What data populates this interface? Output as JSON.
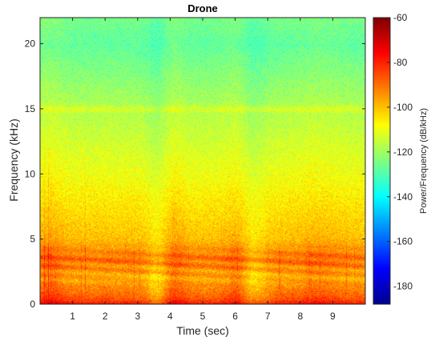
{
  "chart_data": {
    "type": "heatmap",
    "title": "Drone",
    "xlabel": "Time (sec)",
    "ylabel": "Frequency (kHz)",
    "xlim": [
      0,
      10
    ],
    "ylim": [
      0,
      22
    ],
    "x_ticks": [
      1,
      2,
      3,
      4,
      5,
      6,
      7,
      8,
      9
    ],
    "y_ticks": [
      0,
      5,
      10,
      15,
      20
    ],
    "colorbar": {
      "label": "Power/Frequency (dB/kHz)",
      "range": [
        -188,
        -60
      ],
      "ticks": [
        -60,
        -80,
        -100,
        -120,
        -140,
        -160,
        -180
      ],
      "colormap": "jet"
    },
    "description_profile": {
      "freq_khz": [
        0,
        0.5,
        2,
        3.5,
        5,
        7,
        10,
        15,
        20,
        22
      ],
      "power_db_kHz": [
        -85,
        -88,
        -98,
        -90,
        -100,
        -104,
        -110,
        -118,
        -128,
        -125
      ]
    },
    "band_features": [
      {
        "name": "low-frequency harmonics",
        "freq_khz": [
          0,
          4
        ],
        "power_db_kHz": -85
      },
      {
        "name": "tone near 15 kHz",
        "freq_khz": 15,
        "power_db_kHz": -108
      }
    ],
    "grid": false,
    "box": true
  }
}
